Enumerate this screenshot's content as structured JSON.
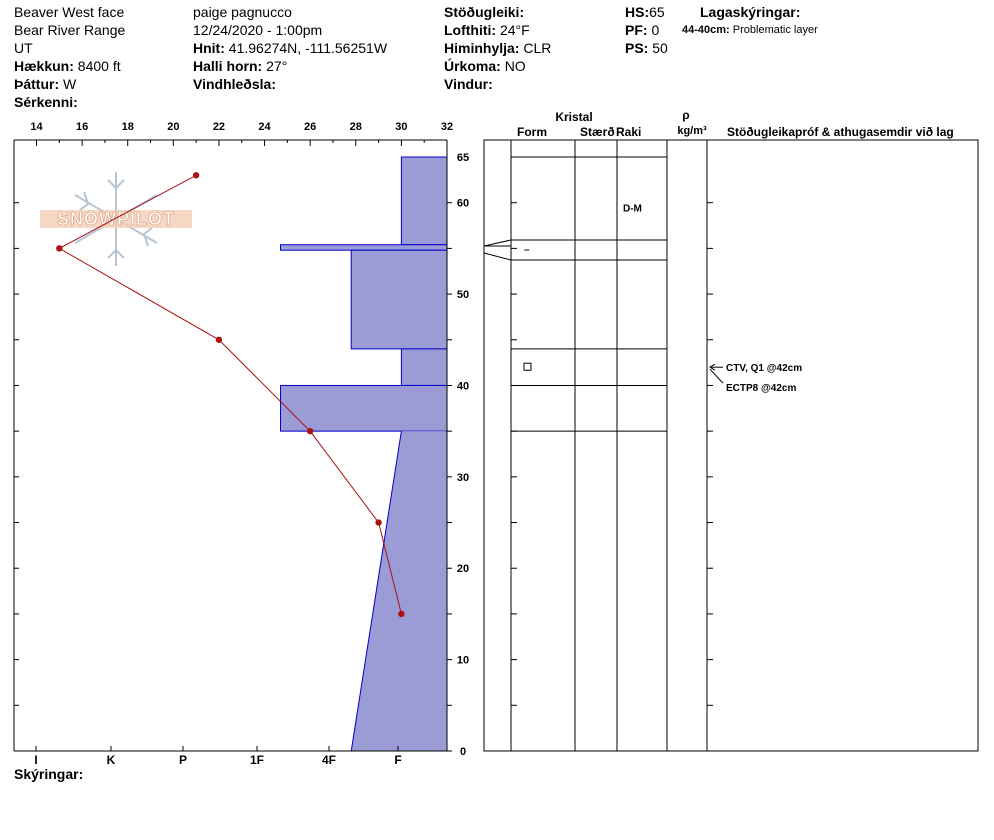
{
  "header": {
    "location": "Beaver West face",
    "range": "Bear River Range",
    "state": "UT",
    "elevation_label": "Hækkun:",
    "elevation": "8400 ft",
    "aspect_label": "Þáttur:",
    "aspect": "W",
    "features_label": "Sérkenni:",
    "observer": "paige pagnucco",
    "datetime": "12/24/2020 - 1:00pm",
    "coords_label": "Hnit:",
    "coords": "41.96274N, -111.56251W",
    "slope_label": "Halli horn:",
    "slope": "27°",
    "wind_loading_label": "Vindhleðsla:",
    "stability_label": "Stöðugleiki:",
    "air_temp_label": "Lofthiti:",
    "air_temp": "24°F",
    "sky_label": "Himinhylja:",
    "sky": "CLR",
    "precip_label": "Úrkoma:",
    "precip": "NO",
    "wind_label": "Vindur:",
    "hs_label": "HS:",
    "hs": "65",
    "pf_label": "PF:",
    "pf": "0",
    "ps_label": "PS:",
    "ps": "50",
    "layer_notes_label": "Lagaskýringar:",
    "layer_note_range": "44-40cm:",
    "layer_note_text": "Problematic layer"
  },
  "footer": {
    "notes_label": "Skýringar:"
  },
  "logo": {
    "text": "SNOWPILOT"
  },
  "colors": {
    "hardness_fill": "#9b9bd6",
    "hardness_stroke": "#0000cc",
    "temp_line": "#aa1111",
    "grid": "#000000"
  },
  "chart_data": {
    "type": "snow_profile",
    "temp_axis": {
      "ticks": [
        14,
        16,
        18,
        20,
        22,
        24,
        26,
        28,
        30,
        32
      ],
      "range": [
        13,
        32
      ]
    },
    "hardness_axis": {
      "labels": [
        "I",
        "K",
        "P",
        "1F",
        "4F",
        "F"
      ]
    },
    "depth_axis": {
      "ticks": [
        0,
        10,
        20,
        30,
        40,
        50,
        60,
        65
      ],
      "range": [
        0,
        65
      ]
    },
    "temperature_profile": [
      {
        "depth": 63,
        "temp": 21
      },
      {
        "depth": 55,
        "temp": 15
      },
      {
        "depth": 45,
        "temp": 22
      },
      {
        "depth": 35,
        "temp": 26
      },
      {
        "depth": 25,
        "temp": 29
      },
      {
        "depth": 15,
        "temp": 30
      }
    ],
    "hardness_layers": [
      {
        "top": 65,
        "bottom": 55.4,
        "hardness": 30
      },
      {
        "top": 55.4,
        "bottom": 54.8,
        "hardness": 24.7
      },
      {
        "top": 54.8,
        "bottom": 44,
        "hardness": 27.8
      },
      {
        "top": 44,
        "bottom": 40,
        "hardness": 30
      },
      {
        "top": 40,
        "bottom": 35,
        "hardness": 24.7
      }
    ],
    "hardness_gradient": {
      "top": 35,
      "bottom": 0,
      "top_hardness": 30,
      "bottom_hardness": 27.8
    },
    "crystal_columns": {
      "crystal": "Kristal",
      "form": "Form",
      "size": "Stærð",
      "moisture": "Raki",
      "density_symbol": "ρ",
      "density_unit": "kg/m³",
      "tests": "Stöðugleikapróf & athugasemdir við lag"
    },
    "layer_boundaries": [
      65,
      55.4,
      54.8,
      44,
      40,
      35
    ],
    "layer_symbols": [
      {
        "depth": 59.5,
        "column": "moisture",
        "text": "D-M"
      },
      {
        "depth": 55,
        "column": "form",
        "text": "–"
      },
      {
        "depth": 42,
        "column": "form",
        "text": "□"
      }
    ],
    "stability_tests": [
      {
        "depth": 42,
        "text": "CTV, Q1 @42cm"
      },
      {
        "depth": 42,
        "text": "ECTP8 @42cm"
      }
    ]
  }
}
